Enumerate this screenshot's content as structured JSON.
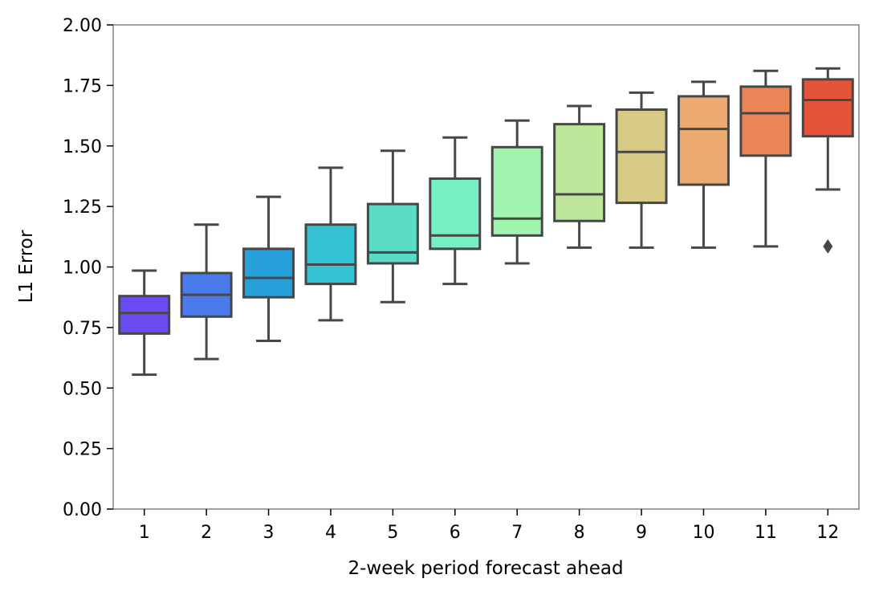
{
  "chart_data": {
    "type": "box",
    "title": "",
    "xlabel": "2-week period forecast ahead",
    "ylabel": "L1 Error",
    "ylim": [
      0,
      2.0
    ],
    "yticks": [
      "0.00",
      "0.25",
      "0.50",
      "0.75",
      "1.00",
      "1.25",
      "1.50",
      "1.75",
      "2.00"
    ],
    "grid": false,
    "categories": [
      "1",
      "2",
      "3",
      "4",
      "5",
      "6",
      "7",
      "8",
      "9",
      "10",
      "11",
      "12"
    ],
    "boxes": [
      {
        "whislo": 0.555,
        "q1": 0.725,
        "med": 0.81,
        "q3": 0.88,
        "whishi": 0.985,
        "fliers": [],
        "color": "#6a4cf2"
      },
      {
        "whislo": 0.62,
        "q1": 0.795,
        "med": 0.885,
        "q3": 0.975,
        "whishi": 1.175,
        "fliers": [],
        "color": "#4a7bea"
      },
      {
        "whislo": 0.695,
        "q1": 0.875,
        "med": 0.955,
        "q3": 1.075,
        "whishi": 1.29,
        "fliers": [],
        "color": "#25a0da"
      },
      {
        "whislo": 0.78,
        "q1": 0.93,
        "med": 1.01,
        "q3": 1.175,
        "whishi": 1.41,
        "fliers": [],
        "color": "#32c2d2"
      },
      {
        "whislo": 0.855,
        "q1": 1.015,
        "med": 1.06,
        "q3": 1.26,
        "whishi": 1.48,
        "fliers": [],
        "color": "#5adbc6"
      },
      {
        "whislo": 0.93,
        "q1": 1.075,
        "med": 1.13,
        "q3": 1.365,
        "whishi": 1.535,
        "fliers": [],
        "color": "#76f0c0"
      },
      {
        "whislo": 1.015,
        "q1": 1.13,
        "med": 1.2,
        "q3": 1.495,
        "whishi": 1.605,
        "fliers": [],
        "color": "#a0f4ae"
      },
      {
        "whislo": 1.08,
        "q1": 1.19,
        "med": 1.3,
        "q3": 1.59,
        "whishi": 1.665,
        "fliers": [],
        "color": "#bee69a"
      },
      {
        "whislo": 1.08,
        "q1": 1.265,
        "med": 1.475,
        "q3": 1.65,
        "whishi": 1.72,
        "fliers": [],
        "color": "#d7ca84"
      },
      {
        "whislo": 1.08,
        "q1": 1.34,
        "med": 1.57,
        "q3": 1.705,
        "whishi": 1.765,
        "fliers": [],
        "color": "#ecaa70"
      },
      {
        "whislo": 1.085,
        "q1": 1.46,
        "med": 1.635,
        "q3": 1.745,
        "whishi": 1.81,
        "fliers": [],
        "color": "#ec8656"
      },
      {
        "whislo": 1.32,
        "q1": 1.54,
        "med": 1.69,
        "q3": 1.775,
        "whishi": 1.82,
        "fliers": [
          1.085
        ],
        "color": "#e5543a"
      }
    ],
    "line_color": "#474747",
    "spine_color": "#8a8a8a"
  }
}
